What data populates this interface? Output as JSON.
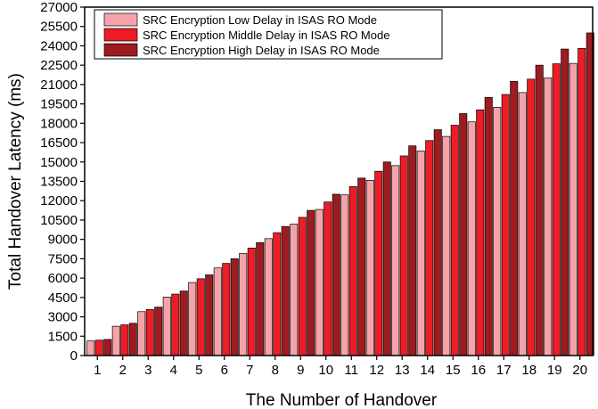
{
  "chart_data": {
    "type": "bar",
    "xlabel": "The Number of Handover",
    "ylabel": "Total Handover Latency (ms)",
    "ylim": [
      0,
      27000
    ],
    "yticks": [
      0,
      1500,
      3000,
      4500,
      6000,
      7500,
      9000,
      10500,
      12000,
      13500,
      15000,
      16500,
      18000,
      19500,
      21000,
      22500,
      24000,
      25500,
      27000
    ],
    "categories": [
      "1",
      "2",
      "3",
      "4",
      "5",
      "6",
      "7",
      "8",
      "9",
      "10",
      "11",
      "12",
      "13",
      "14",
      "15",
      "16",
      "17",
      "18",
      "19",
      "20"
    ],
    "legend_position": "top-left",
    "grid": false,
    "series": [
      {
        "name": "SRC Encryption Low Delay in ISAS RO Mode",
        "color": "#f5a3a8",
        "values": [
          1130,
          2270,
          3400,
          4530,
          5660,
          6790,
          7920,
          9060,
          10190,
          11320,
          12450,
          13580,
          14720,
          15850,
          16980,
          18110,
          19240,
          20380,
          21510,
          22640
        ]
      },
      {
        "name": "SRC Encryption Middle Delay in ISAS RO Mode",
        "color": "#ee1c25",
        "values": [
          1190,
          2380,
          3570,
          4760,
          5950,
          7140,
          8330,
          9520,
          10710,
          11900,
          13090,
          14280,
          15470,
          16660,
          17850,
          19040,
          20230,
          21420,
          22610,
          23800
        ]
      },
      {
        "name": "SRC Encryption High Delay in ISAS RO Mode",
        "color": "#9e1b20",
        "values": [
          1250,
          2500,
          3750,
          5000,
          6250,
          7500,
          8750,
          10000,
          11250,
          12500,
          13750,
          15000,
          16250,
          17500,
          18750,
          20000,
          21250,
          22500,
          23750,
          25000
        ]
      }
    ]
  }
}
